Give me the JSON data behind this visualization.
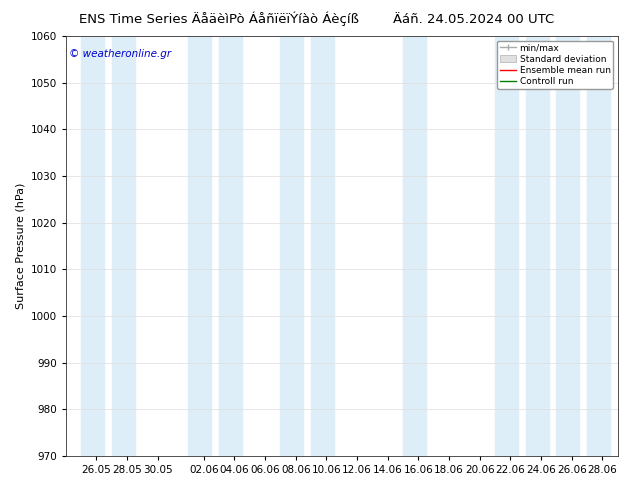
{
  "title_left": "ENS Time Series ÄåäèìPò ÁåñïëïÝíàò Áèçíß",
  "title_right": "Äáñ. 24.05.2024 00 UTC",
  "ylabel": "Surface Pressure (hPa)",
  "ylim": [
    970,
    1060
  ],
  "yticks": [
    970,
    980,
    990,
    1000,
    1010,
    1020,
    1030,
    1040,
    1050,
    1060
  ],
  "watermark": "© weatheronline.gr",
  "watermark_color": "#0000cc",
  "background_color": "#ffffff",
  "plot_bg_color": "#ffffff",
  "band_color": "#ddeef8",
  "legend_minmax_color": "#aaaaaa",
  "legend_stddev_color": "#cccccc",
  "legend_mean_color": "#ff0000",
  "legend_control_color": "#008000",
  "title_fontsize": 9.5,
  "tick_fontsize": 7.5,
  "ylabel_fontsize": 8
}
